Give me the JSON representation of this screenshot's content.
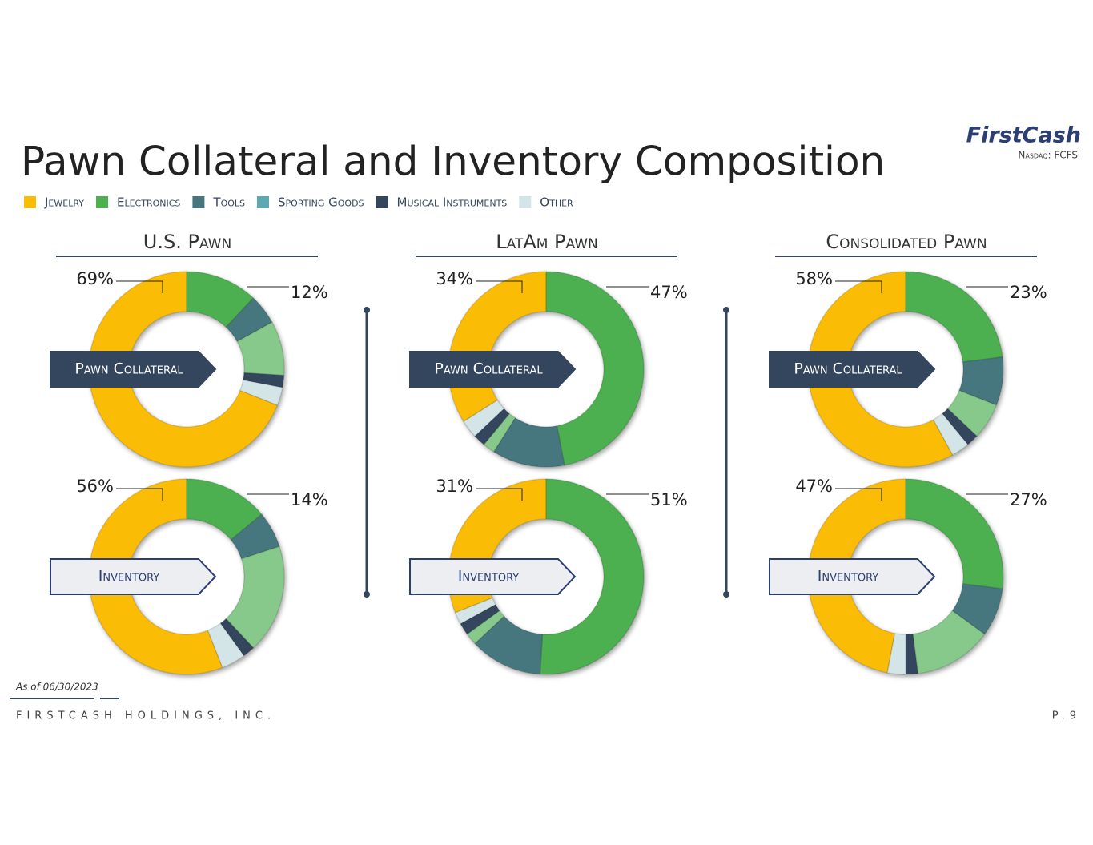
{
  "header": {
    "title": "Pawn Collateral and Inventory Composition",
    "logo": "FirstCash",
    "ticker": "Nasdaq: FCFS"
  },
  "legend": {
    "items": [
      {
        "label": "Jewelry",
        "color": "#fbbc05"
      },
      {
        "label": "Electronics",
        "color": "#4caf50"
      },
      {
        "label": "Tools",
        "color": "#47777e"
      },
      {
        "label": "Sporting Goods",
        "color": "#5aa9b3"
      },
      {
        "label": "Musical Instruments",
        "color": "#34465e"
      },
      {
        "label": "Other",
        "color": "#d4e5e8"
      }
    ]
  },
  "panels": [
    "U.S. Pawn",
    "LatAm Pawn",
    "Consolidated Pawn"
  ],
  "row_labels": [
    "Pawn Collateral",
    "Inventory"
  ],
  "chart_data": [
    {
      "type": "pie",
      "values": [
        69,
        12,
        5,
        9,
        2,
        3
      ],
      "value_labels": [
        "69%",
        "12%",
        null,
        null,
        null,
        null
      ],
      "colors": [
        "#fbbc05",
        "#4caf50",
        "#47777e",
        "#86c98a",
        "#34465e",
        "#d4e5e8"
      ]
    },
    {
      "type": "pie",
      "values": [
        56,
        14,
        6,
        18,
        2,
        4
      ],
      "value_labels": [
        "56%",
        "14%",
        null,
        null,
        null,
        null
      ],
      "colors": [
        "#fbbc05",
        "#4caf50",
        "#47777e",
        "#86c98a",
        "#34465e",
        "#d4e5e8"
      ]
    },
    {
      "type": "pie",
      "values": [
        34,
        47,
        12,
        2,
        2,
        3
      ],
      "value_labels": [
        "34%",
        "47%",
        null,
        null,
        null,
        null
      ],
      "colors": [
        "#fbbc05",
        "#4caf50",
        "#47777e",
        "#86c98a",
        "#34465e",
        "#d4e5e8"
      ]
    },
    {
      "type": "pie",
      "values": [
        31,
        51,
        12,
        2,
        2,
        2
      ],
      "value_labels": [
        "31%",
        "51%",
        null,
        null,
        null,
        null
      ],
      "colors": [
        "#fbbc05",
        "#4caf50",
        "#47777e",
        "#86c98a",
        "#34465e",
        "#d4e5e8"
      ]
    },
    {
      "type": "pie",
      "values": [
        58,
        23,
        8,
        6,
        2,
        3
      ],
      "value_labels": [
        "58%",
        "23%",
        null,
        null,
        null,
        null
      ],
      "colors": [
        "#fbbc05",
        "#4caf50",
        "#47777e",
        "#86c98a",
        "#34465e",
        "#d4e5e8"
      ]
    },
    {
      "type": "pie",
      "values": [
        47,
        27,
        8,
        13,
        2,
        3
      ],
      "value_labels": [
        "47%",
        "27%",
        null,
        null,
        null,
        null
      ],
      "colors": [
        "#fbbc05",
        "#4caf50",
        "#47777e",
        "#86c98a",
        "#34465e",
        "#d4e5e8"
      ]
    }
  ],
  "footer": {
    "note": "As of 06/30/2023",
    "company": "FIRSTCASH HOLDINGS, INC.",
    "page": "P.9"
  }
}
